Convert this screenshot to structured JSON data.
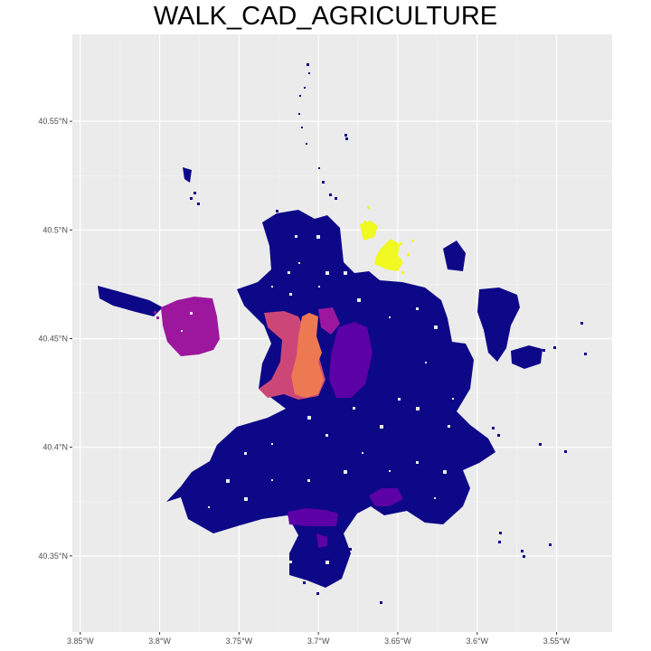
{
  "title": "WALK_CAD_AGRICULTURE",
  "map": {
    "projection": "lon/lat",
    "x_range_deg": [
      -3.855,
      -3.515
    ],
    "y_range_deg": [
      40.315,
      40.59
    ],
    "background": "#ebebeb",
    "grid": true,
    "x_ticks": [
      {
        "value": -3.85,
        "label": "3.85°W"
      },
      {
        "value": -3.8,
        "label": "3.8°W"
      },
      {
        "value": -3.75,
        "label": "3.75°W"
      },
      {
        "value": -3.7,
        "label": "3.7°W"
      },
      {
        "value": -3.65,
        "label": "3.65°W"
      },
      {
        "value": -3.6,
        "label": "3.6°W"
      },
      {
        "value": -3.55,
        "label": "3.55°W"
      }
    ],
    "y_ticks": [
      {
        "value": 40.35,
        "label": "40.35°N"
      },
      {
        "value": 40.4,
        "label": "40.4°N"
      },
      {
        "value": 40.45,
        "label": "40.45°N"
      },
      {
        "value": 40.5,
        "label": "40.5°N"
      },
      {
        "value": 40.55,
        "label": "40.55°N"
      }
    ],
    "palette": "plasma",
    "colors": {
      "level_0": "#0d0887",
      "level_1": "#5c01a6",
      "level_2": "#9c179e",
      "level_3": "#cc4778",
      "level_4": "#ed7953",
      "level_5": "#f0f921"
    }
  }
}
